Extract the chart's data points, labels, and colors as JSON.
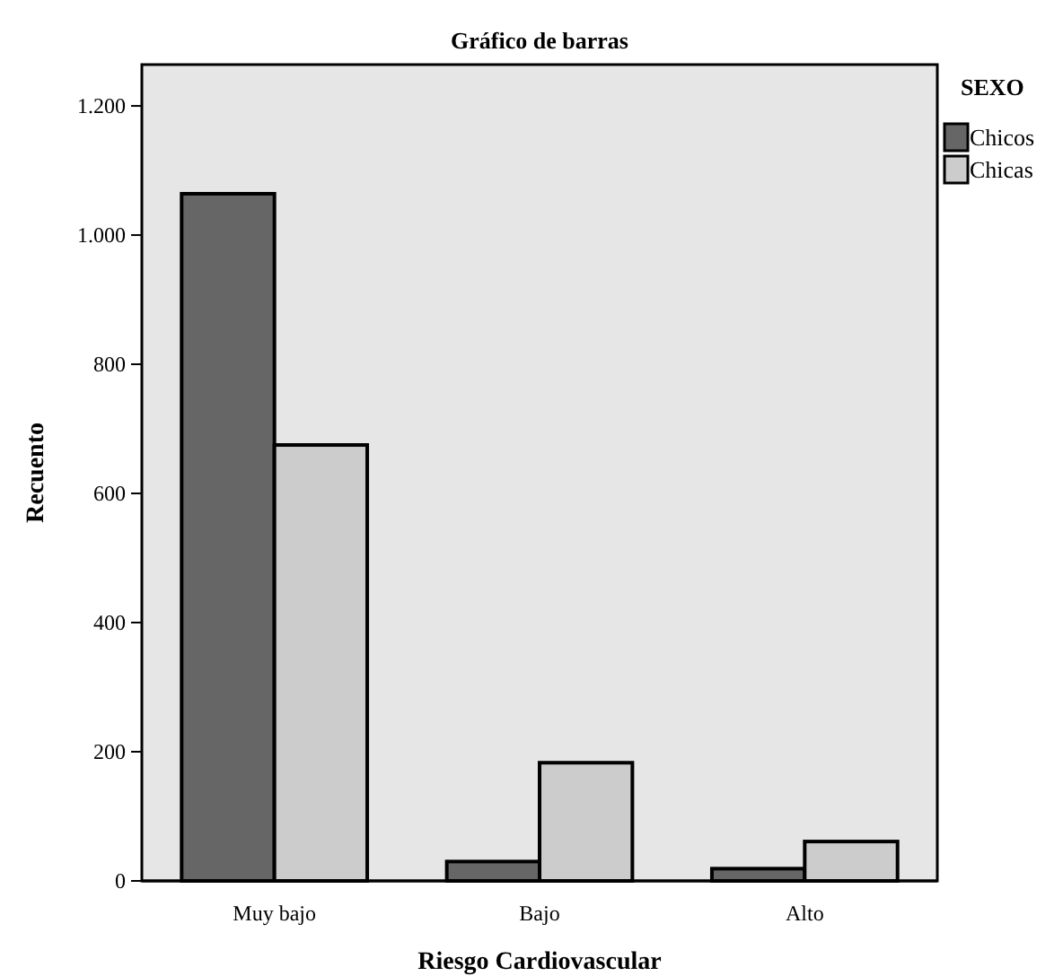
{
  "chart_data": {
    "type": "bar",
    "title": "Gráfico de barras",
    "xlabel": "Riesgo Cardiovascular",
    "ylabel": "Recuento",
    "legend_title": "SEXO",
    "legend": "top right",
    "grid": false,
    "categories": [
      "Muy bajo",
      "Bajo",
      "Alto"
    ],
    "series": [
      {
        "name": "Chicos",
        "color": "#666666",
        "values": [
          1064,
          30,
          19
        ]
      },
      {
        "name": "Chicas",
        "color": "#cccccc",
        "values": [
          675,
          183,
          61
        ]
      }
    ],
    "ylim": [
      0,
      1264
    ],
    "yticks": [
      0,
      200,
      400,
      600,
      800,
      {
        "value": 1000,
        "label": "1.000"
      },
      {
        "value": 1200,
        "label": "1.200"
      }
    ]
  }
}
